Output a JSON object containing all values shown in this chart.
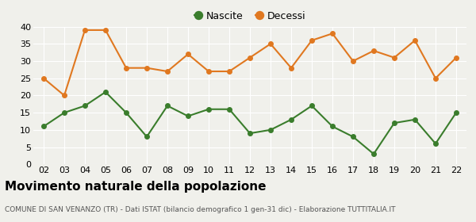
{
  "years": [
    "02",
    "03",
    "04",
    "05",
    "06",
    "07",
    "08",
    "09",
    "10",
    "11",
    "12",
    "13",
    "14",
    "15",
    "16",
    "17",
    "18",
    "19",
    "20",
    "21",
    "22"
  ],
  "nascite": [
    11,
    15,
    17,
    21,
    15,
    8,
    17,
    14,
    16,
    16,
    9,
    10,
    13,
    17,
    11,
    8,
    3,
    12,
    13,
    6,
    15
  ],
  "decessi": [
    25,
    20,
    39,
    39,
    28,
    28,
    27,
    32,
    27,
    27,
    31,
    35,
    28,
    36,
    38,
    30,
    33,
    31,
    36,
    25,
    31
  ],
  "nascite_color": "#3a7d2c",
  "decessi_color": "#e07820",
  "background_color": "#f0f0eb",
  "grid_color": "#ffffff",
  "title": "Movimento naturale della popolazione",
  "subtitle": "COMUNE DI SAN VENANZO (TR) - Dati ISTAT (bilancio demografico 1 gen-31 dic) - Elaborazione TUTTITALIA.IT",
  "legend_nascite": "Nascite",
  "legend_decessi": "Decessi",
  "ylim": [
    0,
    40
  ],
  "yticks": [
    0,
    5,
    10,
    15,
    20,
    25,
    30,
    35,
    40
  ],
  "title_fontsize": 11,
  "subtitle_fontsize": 6.5,
  "axis_fontsize": 8,
  "legend_fontsize": 9,
  "marker_size": 4,
  "linewidth": 1.5
}
